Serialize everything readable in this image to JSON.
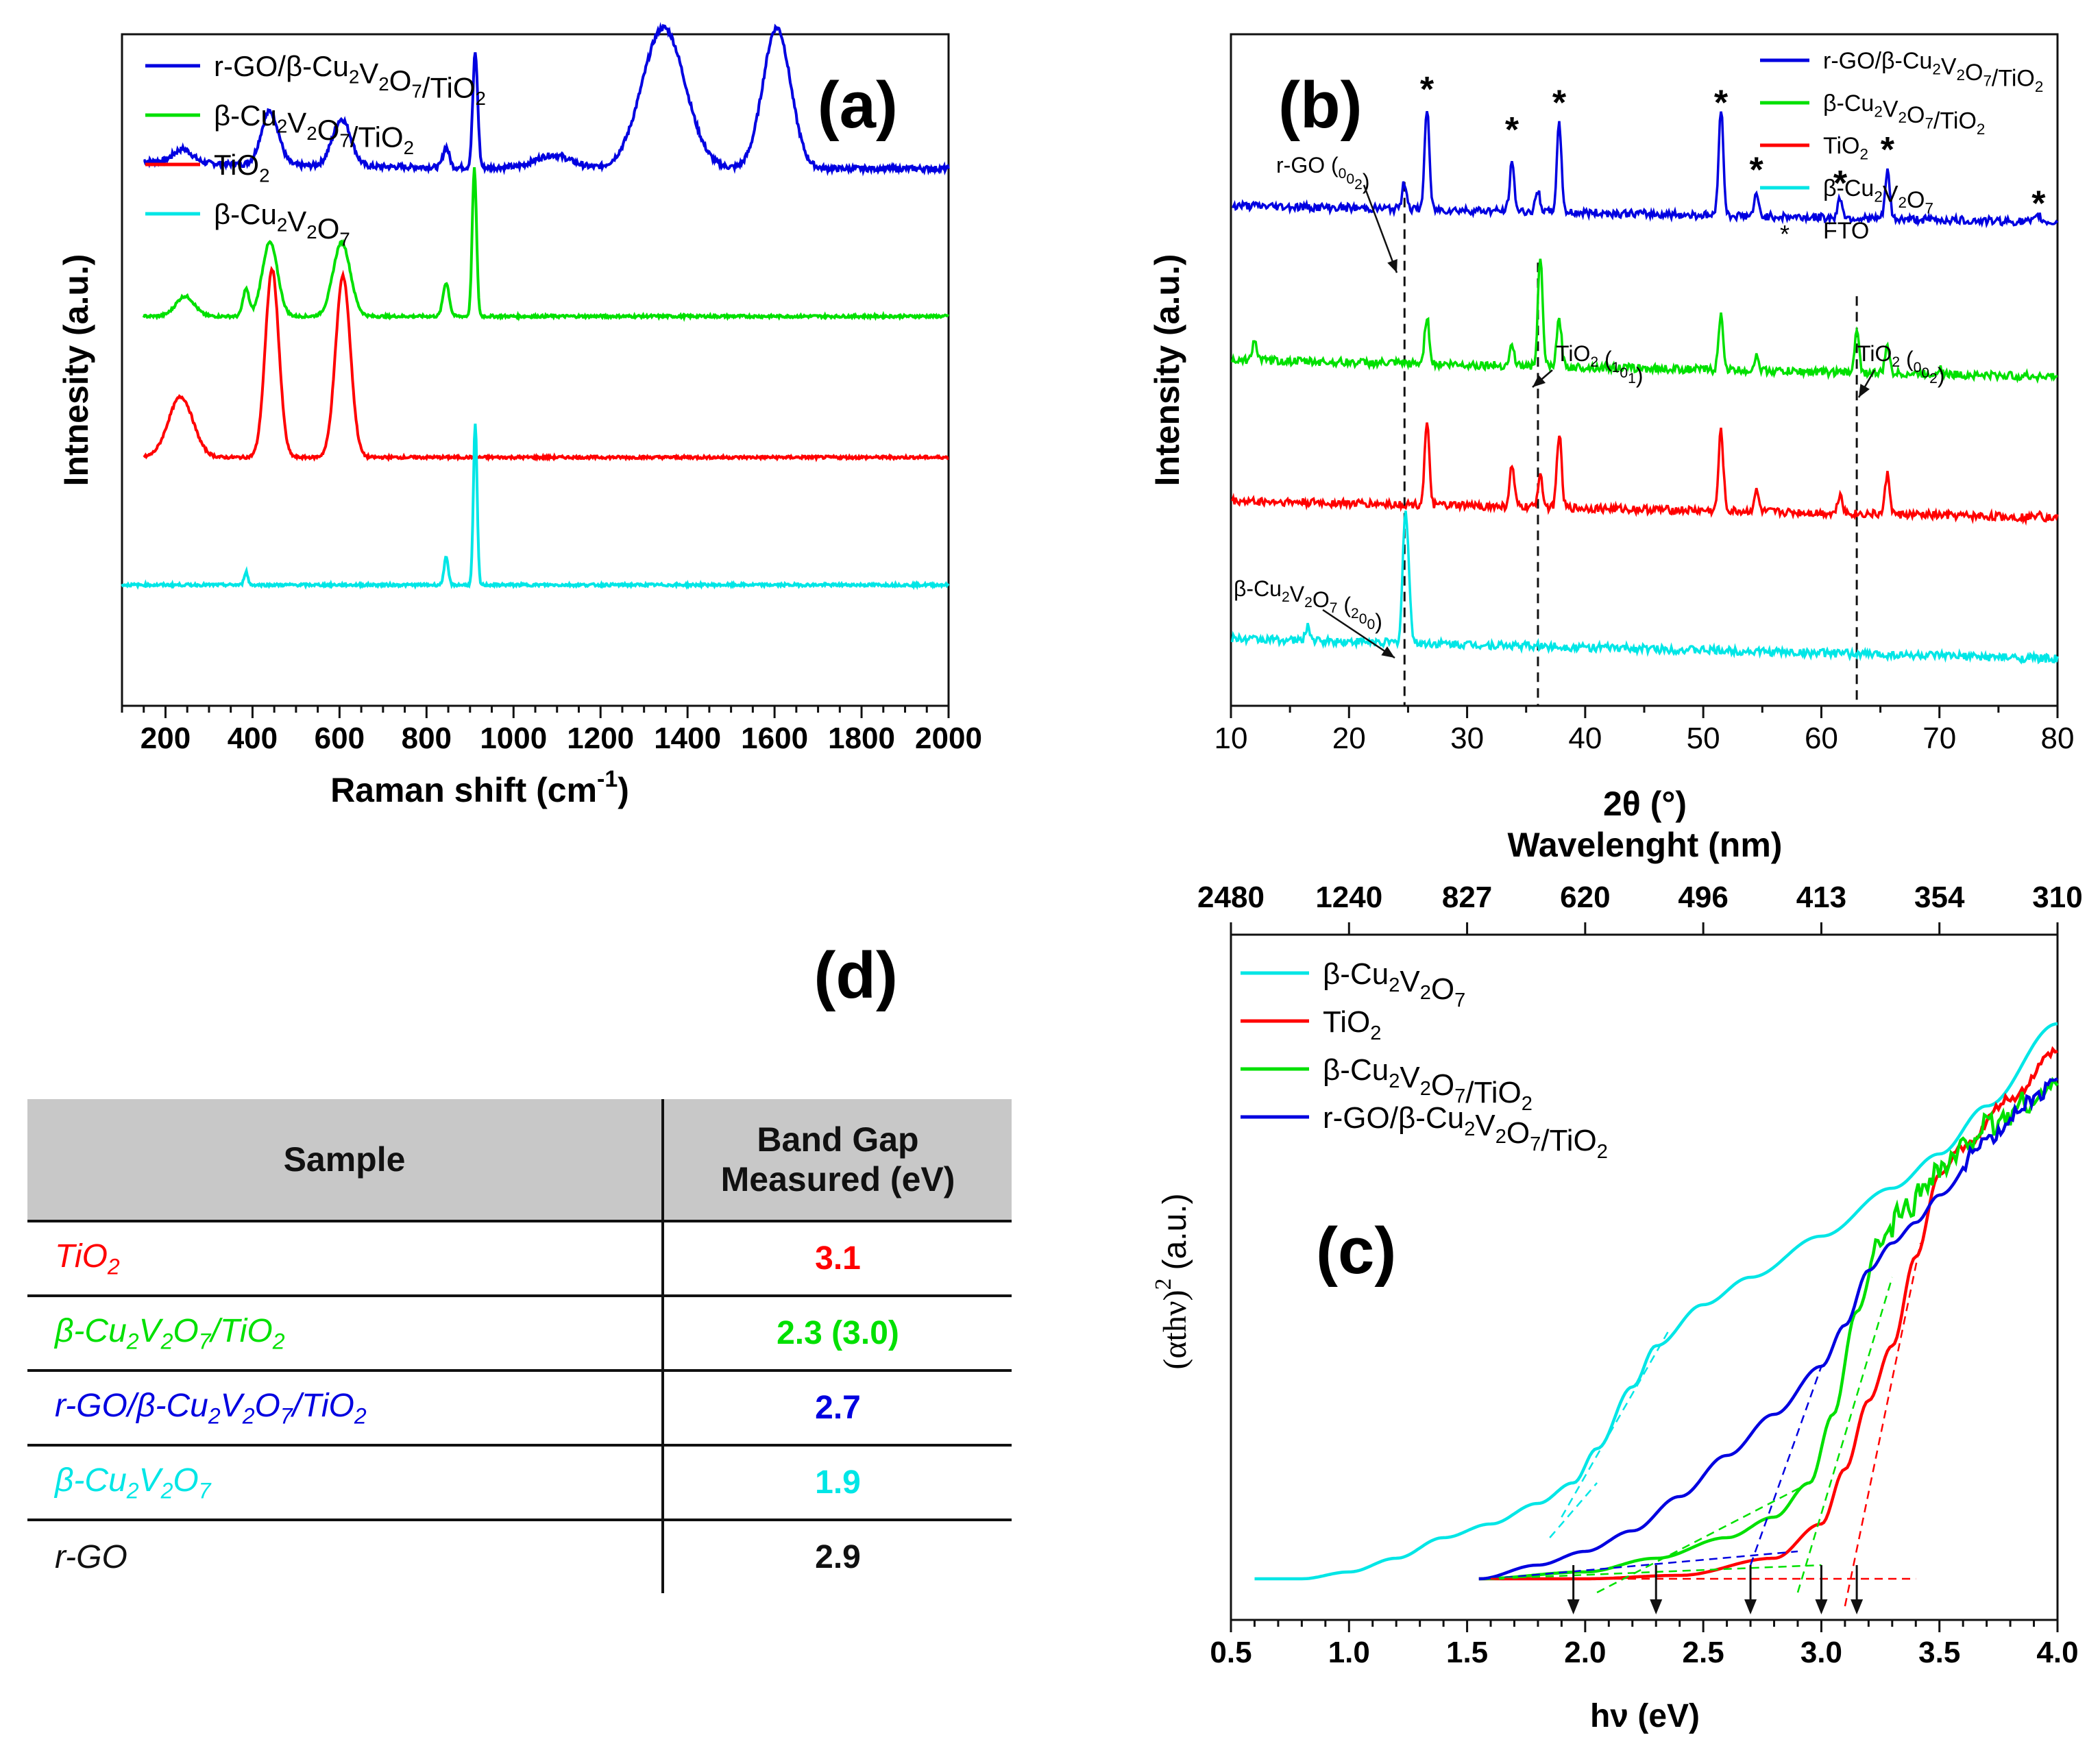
{
  "chart_data": [
    {
      "panel": "(a)",
      "type": "line",
      "xlabel": "Raman shift (cm",
      "xlabel_sup": "-1",
      "xlabel_tail": ")",
      "ylabel": "Intnesity (a.u.)",
      "xlim": [
        100,
        2000
      ],
      "xticks": [
        200,
        400,
        600,
        800,
        1000,
        1200,
        1400,
        1600,
        1800,
        2000
      ],
      "legend": [
        "r-GO/β-Cu2V2O7/TiO2",
        "β-Cu2V2O7/TiO2",
        "TiO2",
        "β-Cu2V2O7"
      ],
      "series": [
        {
          "name": "r-GO/β-Cu2V2O7/TiO2",
          "color": "#0000e0",
          "baseline": 0.8,
          "peaks": [
            [
              240,
              0.02,
              30
            ],
            [
              440,
              0.08,
              28
            ],
            [
              605,
              0.07,
              30
            ],
            [
              845,
              0.03,
              10
            ],
            [
              912,
              0.17,
              8
            ],
            [
              1090,
              0.02,
              60
            ],
            [
              1345,
              0.21,
              70
            ],
            [
              1605,
              0.21,
              45
            ]
          ]
        },
        {
          "name": "β-Cu2V2O7/TiO2",
          "color": "#00e000",
          "baseline": 0.58,
          "peaks": [
            [
              245,
              0.03,
              30
            ],
            [
              385,
              0.04,
              10
            ],
            [
              440,
              0.11,
              25
            ],
            [
              605,
              0.11,
              28
            ],
            [
              845,
              0.05,
              10
            ],
            [
              910,
              0.22,
              7
            ]
          ]
        },
        {
          "name": "TiO2",
          "color": "#ff0000",
          "baseline": 0.37,
          "peaks": [
            [
              235,
              0.09,
              40
            ],
            [
              445,
              0.28,
              22
            ],
            [
              608,
              0.27,
              24
            ]
          ]
        },
        {
          "name": "β-Cu2V2O7",
          "color": "#00e6e6",
          "baseline": 0.18,
          "peaks": [
            [
              385,
              0.02,
              6
            ],
            [
              845,
              0.04,
              7
            ],
            [
              912,
              0.24,
              6
            ]
          ]
        }
      ]
    },
    {
      "panel": "(b)",
      "type": "line",
      "xlabel": "2θ (°)",
      "ylabel": "Intensity (a.u.)",
      "xlim": [
        10,
        80
      ],
      "xticks": [
        10,
        20,
        30,
        40,
        50,
        60,
        70,
        80
      ],
      "legend": [
        "r-GO/β-Cu2V2O7/TiO2",
        "β-Cu2V2O7/TiO2",
        "TiO2",
        "β-Cu2V2O7",
        "FTO"
      ],
      "fto_marker": "*",
      "star_positions": [
        26.6,
        33.8,
        37.8,
        51.5,
        54.5,
        61.6,
        65.6,
        78.4
      ],
      "dashed_lines": [
        24.7,
        36.0,
        63.0
      ],
      "annotations": [
        {
          "text": "r-GO (002)",
          "x": 24.7
        },
        {
          "text": "TiO2 (101)",
          "x": 36.0
        },
        {
          "text": "TiO2 (002)",
          "x": 63.0
        },
        {
          "text": "β-Cu2V2O7 (200)",
          "x": 24.7
        }
      ],
      "series": [
        {
          "name": "r-GO/β-Cu2V2O7/TiO2",
          "color": "#0000e0",
          "baseline": 0.72,
          "peaks": [
            [
              24.7,
              0.04
            ],
            [
              26.6,
              0.15
            ],
            [
              33.8,
              0.07
            ],
            [
              36.0,
              0.03
            ],
            [
              37.8,
              0.13
            ],
            [
              51.5,
              0.16
            ],
            [
              54.5,
              0.03
            ],
            [
              61.6,
              0.03
            ],
            [
              65.6,
              0.07
            ],
            [
              78.4,
              0.01
            ]
          ]
        },
        {
          "name": "β-Cu2V2O7/TiO2",
          "color": "#00e000",
          "baseline": 0.49,
          "peaks": [
            [
              12.0,
              0.03
            ],
            [
              26.6,
              0.07
            ],
            [
              33.8,
              0.03
            ],
            [
              36.2,
              0.16
            ],
            [
              37.8,
              0.07
            ],
            [
              51.5,
              0.08
            ],
            [
              54.5,
              0.02
            ],
            [
              63.0,
              0.06
            ],
            [
              65.6,
              0.04
            ],
            [
              70.0,
              0.01
            ]
          ]
        },
        {
          "name": "TiO2",
          "color": "#ff0000",
          "baseline": 0.28,
          "peaks": [
            [
              26.6,
              0.12
            ],
            [
              33.8,
              0.06
            ],
            [
              36.2,
              0.05
            ],
            [
              37.8,
              0.11
            ],
            [
              51.5,
              0.12
            ],
            [
              54.5,
              0.03
            ],
            [
              61.6,
              0.03
            ],
            [
              65.6,
              0.06
            ],
            [
              78.4,
              0.01
            ]
          ]
        },
        {
          "name": "β-Cu2V2O7",
          "color": "#00e6e6",
          "baseline": 0.07,
          "peaks": [
            [
              16.5,
              0.02
            ],
            [
              24.7,
              0.15
            ],
            [
              25.0,
              0.1
            ]
          ]
        }
      ]
    },
    {
      "panel": "(c)",
      "type": "line",
      "xlabel": "hν (eV)",
      "ylabel": "(αthν)",
      "ylabel_sup": "2",
      "ylabel_tail": "(a.u.)",
      "top_axis_label": "Wavelenght (nm)",
      "top_ticks": [
        "2480",
        "1240",
        "827",
        "620",
        "496",
        "413",
        "354",
        "310"
      ],
      "top_tick_positions_ev": [
        0.5,
        1.0,
        1.5,
        2.0,
        2.5,
        3.0,
        3.5,
        4.0
      ],
      "xlim": [
        0.5,
        4.0
      ],
      "xticks": [
        "0.5",
        "1.0",
        "1.5",
        "2.0",
        "2.5",
        "3.0",
        "3.5",
        "4.0"
      ],
      "band_gap_arrows_ev": [
        1.95,
        2.3,
        2.7,
        3.0,
        3.15
      ],
      "legend": [
        "β-Cu2V2O7",
        "TiO2",
        "β-Cu2V2O7/TiO2",
        "r-GO/β-Cu2V2O7/TiO2"
      ],
      "series": [
        {
          "name": "β-Cu2V2O7",
          "color": "#00e6e6",
          "x": [
            0.6,
            0.8,
            1.0,
            1.2,
            1.4,
            1.6,
            1.8,
            1.95,
            2.05,
            2.2,
            2.3,
            2.5,
            2.7,
            3.0,
            3.3,
            3.5,
            3.7,
            4.0
          ],
          "y": [
            0.06,
            0.06,
            0.07,
            0.09,
            0.12,
            0.14,
            0.17,
            0.2,
            0.25,
            0.34,
            0.4,
            0.46,
            0.5,
            0.56,
            0.63,
            0.68,
            0.75,
            0.87
          ]
        },
        {
          "name": "TiO2",
          "color": "#ff0000",
          "x": [
            1.55,
            2.0,
            2.4,
            2.8,
            3.0,
            3.1,
            3.2,
            3.3,
            3.4,
            3.5,
            3.6,
            3.8,
            4.0
          ],
          "y": [
            0.06,
            0.06,
            0.065,
            0.09,
            0.14,
            0.22,
            0.32,
            0.4,
            0.53,
            0.65,
            0.69,
            0.76,
            0.83
          ]
        },
        {
          "name": "β-Cu2V2O7/TiO2",
          "color": "#00e000",
          "x": [
            1.55,
            2.0,
            2.3,
            2.6,
            2.8,
            2.95,
            3.05,
            3.15,
            3.25,
            3.35,
            3.5,
            3.7,
            3.9,
            4.0
          ],
          "y": [
            0.06,
            0.07,
            0.09,
            0.12,
            0.15,
            0.2,
            0.3,
            0.45,
            0.55,
            0.6,
            0.66,
            0.72,
            0.76,
            0.78
          ]
        },
        {
          "name": "r-GO/β-Cu2V2O7/TiO2",
          "color": "#0000e0",
          "x": [
            1.55,
            1.8,
            2.0,
            2.2,
            2.4,
            2.6,
            2.8,
            3.0,
            3.1,
            3.2,
            3.3,
            3.4,
            3.5,
            3.7,
            3.9,
            4.0
          ],
          "y": [
            0.06,
            0.08,
            0.1,
            0.13,
            0.18,
            0.24,
            0.3,
            0.37,
            0.43,
            0.51,
            0.55,
            0.58,
            0.62,
            0.7,
            0.76,
            0.79
          ]
        }
      ]
    }
  ],
  "panel_labels": {
    "a": "(a)",
    "b": "(b)",
    "c": "(c)",
    "d": "(d)"
  },
  "table": {
    "header_sample": "Sample",
    "header_gap_line1": "Band Gap",
    "header_gap_line2": "Measured  (eV)",
    "rows": [
      {
        "sample": "TiO2",
        "value": "3.1",
        "color": "#ff0000"
      },
      {
        "sample": "β-Cu2V2O7/TiO2",
        "value": "2.3 (3.0)",
        "color": "#00e000"
      },
      {
        "sample": "r-GO/β-Cu2V2O7/TiO2",
        "value": "2.7",
        "color": "#0000e0"
      },
      {
        "sample": "β-Cu2V2O7",
        "value": "1.9",
        "color": "#00e6e6"
      },
      {
        "sample": "r-GO",
        "value": "2.9",
        "color": "#111111"
      }
    ]
  }
}
